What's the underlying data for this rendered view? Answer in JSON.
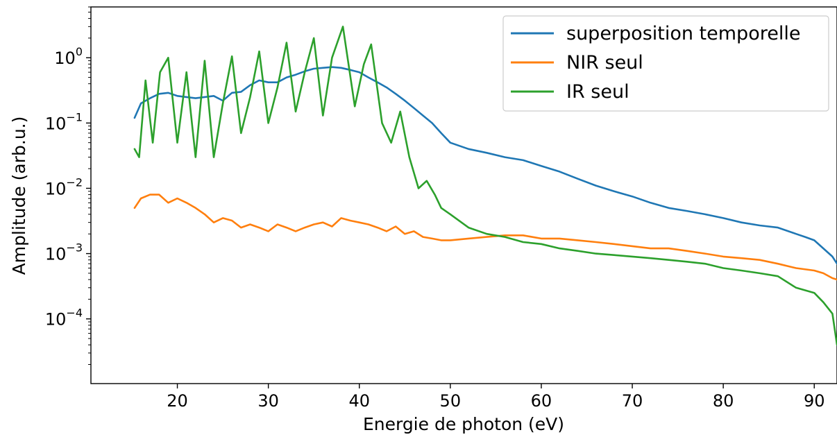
{
  "chart_data": {
    "type": "line",
    "xlabel": "Energie de photon (eV)",
    "ylabel": "Amplitude (arb.u.)",
    "xlim": [
      10.5,
      92.5
    ],
    "ylim": [
      1.02e-05,
      6.0
    ],
    "yscale": "log",
    "grid": false,
    "legend_position": "top-right",
    "x_ticks": [
      {
        "value": 20,
        "label": "20"
      },
      {
        "value": 30,
        "label": "30"
      },
      {
        "value": 40,
        "label": "40"
      },
      {
        "value": 50,
        "label": "50"
      },
      {
        "value": 60,
        "label": "60"
      },
      {
        "value": 70,
        "label": "70"
      },
      {
        "value": 80,
        "label": "80"
      },
      {
        "value": 90,
        "label": "90"
      }
    ],
    "y_ticks": [
      {
        "value": 1,
        "base": "10",
        "exp": "0"
      },
      {
        "value": 0.1,
        "base": "10",
        "exp": "−1"
      },
      {
        "value": 0.01,
        "base": "10",
        "exp": "−2"
      },
      {
        "value": 0.001,
        "base": "10",
        "exp": "−3"
      },
      {
        "value": 0.0001,
        "base": "10",
        "exp": "−4"
      }
    ],
    "series": [
      {
        "name": "superposition temporelle",
        "color": "#1f77b4",
        "x": [
          15.3,
          16,
          17,
          18,
          19,
          20,
          21,
          22,
          23,
          24,
          25,
          26,
          27,
          28,
          29,
          30,
          31,
          32,
          33,
          34,
          35,
          36,
          37,
          38,
          39,
          40,
          41,
          42,
          43,
          44,
          45,
          46,
          47,
          48,
          49,
          50,
          52,
          54,
          56,
          58,
          60,
          62,
          64,
          66,
          68,
          70,
          72,
          74,
          76,
          78,
          80,
          82,
          84,
          86,
          88,
          89,
          90,
          91,
          92,
          92.5
        ],
        "y": [
          0.12,
          0.2,
          0.24,
          0.28,
          0.29,
          0.26,
          0.25,
          0.24,
          0.25,
          0.26,
          0.22,
          0.29,
          0.3,
          0.38,
          0.45,
          0.42,
          0.42,
          0.5,
          0.55,
          0.62,
          0.68,
          0.7,
          0.72,
          0.7,
          0.65,
          0.6,
          0.5,
          0.42,
          0.35,
          0.28,
          0.22,
          0.17,
          0.13,
          0.1,
          0.07,
          0.05,
          0.04,
          0.035,
          0.03,
          0.027,
          0.022,
          0.018,
          0.014,
          0.011,
          0.009,
          0.0075,
          0.006,
          0.005,
          0.0045,
          0.004,
          0.0035,
          0.003,
          0.0027,
          0.0025,
          0.002,
          0.0018,
          0.0016,
          0.0012,
          0.0009,
          0.0007
        ]
      },
      {
        "name": "NIR seul",
        "color": "#ff7f0e",
        "x": [
          15.3,
          16,
          17,
          18,
          19,
          20,
          21,
          22,
          23,
          24,
          25,
          26,
          27,
          28,
          29,
          30,
          31,
          32,
          33,
          34,
          35,
          36,
          37,
          38,
          39,
          40,
          41,
          42,
          43,
          44,
          45,
          46,
          47,
          48,
          49,
          50,
          52,
          54,
          56,
          58,
          60,
          62,
          64,
          66,
          68,
          70,
          72,
          74,
          76,
          78,
          80,
          82,
          84,
          86,
          88,
          90,
          91,
          92,
          92.5
        ],
        "y": [
          0.005,
          0.007,
          0.008,
          0.008,
          0.006,
          0.007,
          0.006,
          0.005,
          0.004,
          0.003,
          0.0035,
          0.0032,
          0.0025,
          0.0028,
          0.0025,
          0.0022,
          0.0028,
          0.0025,
          0.0022,
          0.0025,
          0.0028,
          0.003,
          0.0026,
          0.0035,
          0.0032,
          0.003,
          0.0028,
          0.0025,
          0.0022,
          0.0026,
          0.002,
          0.0022,
          0.0018,
          0.0017,
          0.0016,
          0.0016,
          0.0017,
          0.0018,
          0.0019,
          0.0019,
          0.0017,
          0.0017,
          0.0016,
          0.0015,
          0.0014,
          0.0013,
          0.0012,
          0.0012,
          0.0011,
          0.001,
          0.0009,
          0.00085,
          0.0008,
          0.0007,
          0.0006,
          0.00055,
          0.0005,
          0.00042,
          0.0004
        ]
      },
      {
        "name": "IR seul",
        "color": "#2ca02c",
        "x": [
          15.3,
          15.8,
          16.5,
          17.3,
          18.1,
          19,
          20,
          21,
          22,
          23,
          24,
          25,
          26,
          27,
          28,
          29,
          30,
          31,
          32,
          33,
          34,
          35,
          36,
          37,
          38.2,
          39.5,
          40.5,
          41.3,
          42.5,
          43.5,
          44.5,
          45.5,
          46.5,
          47.4,
          48.3,
          49,
          50,
          52,
          54,
          56,
          58,
          60,
          62,
          64,
          66,
          68,
          70,
          72,
          74,
          76,
          78,
          80,
          82,
          84,
          86,
          88,
          90,
          91,
          92,
          92.5
        ],
        "y": [
          0.04,
          0.03,
          0.45,
          0.05,
          0.6,
          1.0,
          0.05,
          0.6,
          0.03,
          0.9,
          0.03,
          0.2,
          1.05,
          0.07,
          0.25,
          1.25,
          0.1,
          0.35,
          1.7,
          0.15,
          0.6,
          2.0,
          0.13,
          1.0,
          3.0,
          0.18,
          0.8,
          1.6,
          0.1,
          0.05,
          0.15,
          0.03,
          0.01,
          0.013,
          0.008,
          0.005,
          0.004,
          0.0025,
          0.002,
          0.0018,
          0.0015,
          0.0014,
          0.0012,
          0.0011,
          0.001,
          0.00095,
          0.0009,
          0.00085,
          0.0008,
          0.00075,
          0.0007,
          0.0006,
          0.00055,
          0.0005,
          0.00045,
          0.0003,
          0.00025,
          0.00018,
          0.00012,
          4e-05
        ]
      }
    ]
  }
}
